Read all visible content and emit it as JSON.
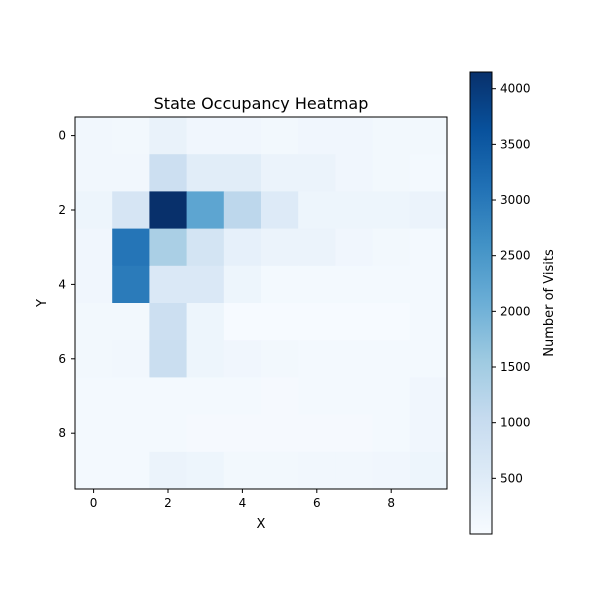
{
  "chart_data": {
    "type": "heatmap",
    "title": "State Occupancy Heatmap",
    "xlabel": "X",
    "ylabel": "Y",
    "x_ticks": [
      0,
      2,
      4,
      6,
      8
    ],
    "y_ticks": [
      0,
      2,
      4,
      6,
      8
    ],
    "xlim": [
      -0.5,
      9.5
    ],
    "ylim": [
      9.5,
      -0.5
    ],
    "colormap": "Blues",
    "colorbar": {
      "label": "Number of Visits",
      "min": 0,
      "max": 4150,
      "ticks": [
        500,
        1000,
        1500,
        2000,
        2500,
        3000,
        3500,
        4000
      ]
    },
    "grid": false,
    "values": [
      [
        120,
        100,
        300,
        150,
        150,
        100,
        150,
        150,
        100,
        100
      ],
      [
        120,
        120,
        900,
        450,
        450,
        250,
        250,
        150,
        100,
        80
      ],
      [
        200,
        700,
        4150,
        2250,
        1150,
        550,
        200,
        200,
        200,
        250
      ],
      [
        150,
        3050,
        1400,
        750,
        350,
        250,
        250,
        150,
        100,
        80
      ],
      [
        150,
        2950,
        600,
        600,
        200,
        80,
        80,
        80,
        80,
        80
      ],
      [
        100,
        100,
        900,
        200,
        30,
        30,
        30,
        30,
        30,
        80
      ],
      [
        100,
        120,
        950,
        200,
        150,
        100,
        80,
        80,
        80,
        80
      ],
      [
        80,
        80,
        80,
        80,
        80,
        50,
        80,
        80,
        80,
        150
      ],
      [
        80,
        80,
        80,
        50,
        50,
        50,
        50,
        50,
        80,
        150
      ],
      [
        80,
        80,
        250,
        200,
        100,
        100,
        120,
        120,
        150,
        200
      ]
    ]
  }
}
